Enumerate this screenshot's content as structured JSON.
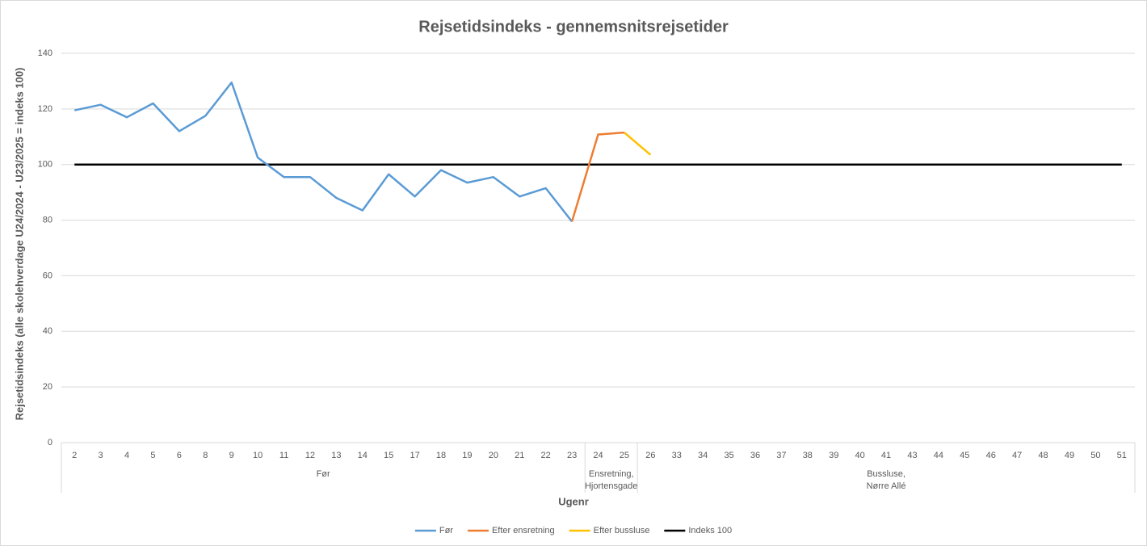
{
  "chart_data": {
    "type": "line",
    "title": "Rejsetidsindeks - gennemsnitsrejsetider",
    "x_label": "Ugenr",
    "y_label": "Rejsetidsindeks (alle skolehverdage U24/2024 - U23/2025 = indeks 100)",
    "categories": [
      "2",
      "3",
      "4",
      "5",
      "6",
      "8",
      "9",
      "10",
      "11",
      "12",
      "13",
      "14",
      "15",
      "17",
      "18",
      "19",
      "20",
      "21",
      "22",
      "23",
      "24",
      "25",
      "26",
      "33",
      "34",
      "35",
      "36",
      "37",
      "38",
      "39",
      "40",
      "41",
      "43",
      "44",
      "45",
      "46",
      "47",
      "48",
      "49",
      "50",
      "51"
    ],
    "groups": [
      {
        "label": [
          "Før"
        ],
        "start": 0,
        "end": 19
      },
      {
        "label": [
          "Ensretning,",
          "Hjortensgade"
        ],
        "start": 20,
        "end": 21
      },
      {
        "label": [
          "Bussluse,",
          "Nørre Allé"
        ],
        "start": 22,
        "end": 40
      }
    ],
    "series": [
      {
        "name": "Før",
        "color": "#5b9bd5",
        "values": [
          119.5,
          121.5,
          117,
          122,
          112,
          117.5,
          129.5,
          102.5,
          95.5,
          95.5,
          88,
          83.5,
          96.5,
          88.5,
          98,
          93.5,
          95.5,
          88.5,
          91.5,
          79.5,
          null,
          null,
          null,
          null,
          null,
          null,
          null,
          null,
          null,
          null,
          null,
          null,
          null,
          null,
          null,
          null,
          null,
          null,
          null,
          null,
          null
        ]
      },
      {
        "name": "Efter ensretning",
        "color": "#ed7d31",
        "values": [
          null,
          null,
          null,
          null,
          null,
          null,
          null,
          null,
          null,
          null,
          null,
          null,
          null,
          null,
          null,
          null,
          null,
          null,
          null,
          79.5,
          110.8,
          111.5,
          null,
          null,
          null,
          null,
          null,
          null,
          null,
          null,
          null,
          null,
          null,
          null,
          null,
          null,
          null,
          null,
          null,
          null,
          null
        ]
      },
      {
        "name": "Efter bussluse",
        "color": "#ffc000",
        "values": [
          null,
          null,
          null,
          null,
          null,
          null,
          null,
          null,
          null,
          null,
          null,
          null,
          null,
          null,
          null,
          null,
          null,
          null,
          null,
          null,
          null,
          111.5,
          103.5,
          null,
          null,
          null,
          null,
          null,
          null,
          null,
          null,
          null,
          null,
          null,
          null,
          null,
          null,
          null,
          null,
          null,
          null
        ]
      },
      {
        "name": "Indeks 100",
        "color": "#000000",
        "values": [
          100,
          100,
          100,
          100,
          100,
          100,
          100,
          100,
          100,
          100,
          100,
          100,
          100,
          100,
          100,
          100,
          100,
          100,
          100,
          100,
          100,
          100,
          100,
          100,
          100,
          100,
          100,
          100,
          100,
          100,
          100,
          100,
          100,
          100,
          100,
          100,
          100,
          100,
          100,
          100,
          100
        ]
      }
    ],
    "ylim": [
      0,
      140
    ],
    "yticks": [
      0,
      20,
      40,
      60,
      80,
      100,
      120,
      140
    ],
    "grid": true,
    "legend": "bottom"
  }
}
